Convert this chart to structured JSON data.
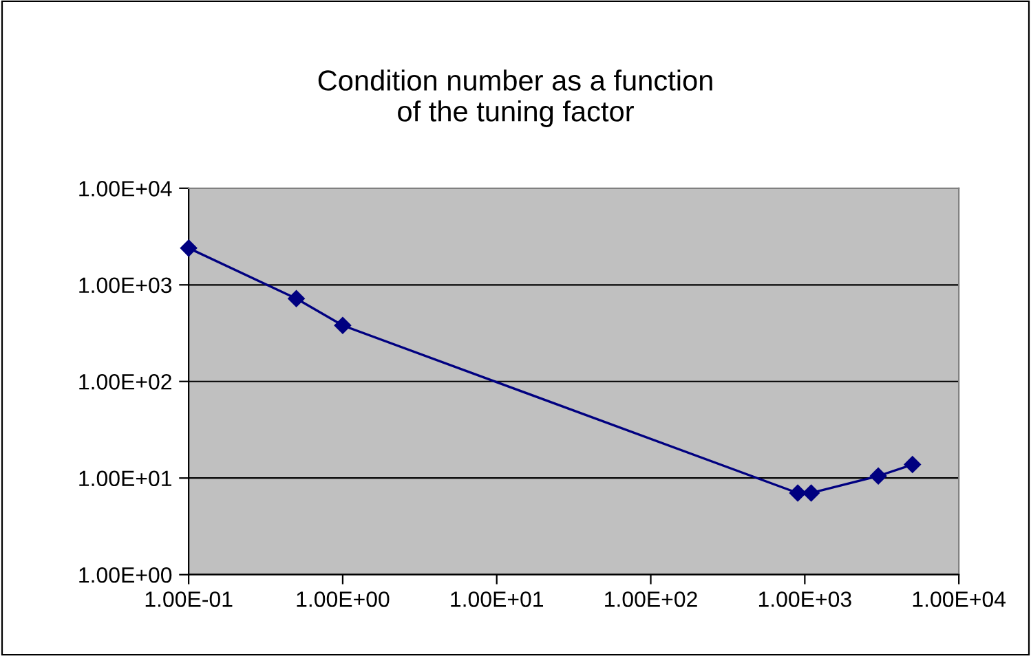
{
  "chart_data": {
    "type": "line",
    "title": "Condition number as a function\nof the tuning factor",
    "x": [
      0.1,
      0.5,
      1,
      900,
      1100,
      3000,
      5000
    ],
    "series": [
      {
        "color": "#000080",
        "values": [
          2400,
          720,
          380,
          7,
          7,
          10.5,
          13.8
        ]
      }
    ],
    "log": "xy",
    "xlim": [
      0.1,
      10000
    ],
    "ylim": [
      1,
      10000
    ],
    "xticks": [
      {
        "value": 0.1,
        "label": "1.00E-01"
      },
      {
        "value": 1,
        "label": "1.00E+00"
      },
      {
        "value": 10,
        "label": "1.00E+01"
      },
      {
        "value": 100,
        "label": "1.00E+02"
      },
      {
        "value": 1000,
        "label": "1.00E+03"
      },
      {
        "value": 10000,
        "label": "1.00E+04"
      }
    ],
    "yticks": [
      {
        "value": 1,
        "label": "1.00E+00"
      },
      {
        "value": 10,
        "label": "1.00E+01"
      },
      {
        "value": 100,
        "label": "1.00E+02"
      },
      {
        "value": 1000,
        "label": "1.00E+03"
      },
      {
        "value": 10000,
        "label": "1.00E+04"
      }
    ],
    "grid": "y",
    "marker": "diamond",
    "line_style": "solid",
    "legend": false
  }
}
